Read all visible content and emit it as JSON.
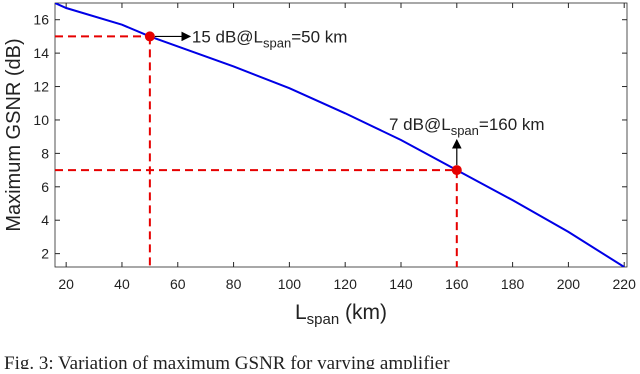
{
  "chart_data": {
    "type": "line",
    "xlabel": [
      "L",
      "span",
      " (km)"
    ],
    "ylabel": "Maximum GSNR (dB)",
    "x": [
      16,
      20,
      40,
      50,
      60,
      80,
      100,
      120,
      140,
      160,
      180,
      200,
      220
    ],
    "series": [
      {
        "color": "#0000e6",
        "values": [
          17,
          16.7,
          15.7,
          15,
          14.4,
          13.2,
          11.9,
          10.4,
          8.8,
          7,
          5.2,
          3.3,
          1.2
        ]
      }
    ],
    "xlim": [
      16,
      221
    ],
    "ylim": [
      1.2,
      17
    ],
    "xticks": [
      20,
      40,
      60,
      80,
      100,
      120,
      140,
      160,
      180,
      200,
      220
    ],
    "yticks": [
      2,
      4,
      6,
      8,
      10,
      12,
      14,
      16
    ],
    "highlights": [
      {
        "x": 50,
        "y": 15,
        "color": "#e60000",
        "label": [
          "15 dB@L",
          "span",
          "=50 km"
        ]
      },
      {
        "x": 160,
        "y": 7,
        "color": "#e60000",
        "label": [
          "7 dB@L",
          "span",
          "=160 km"
        ]
      }
    ],
    "caption": "Fig. 3: Variation of maximum GSNR for varying amplifier"
  }
}
